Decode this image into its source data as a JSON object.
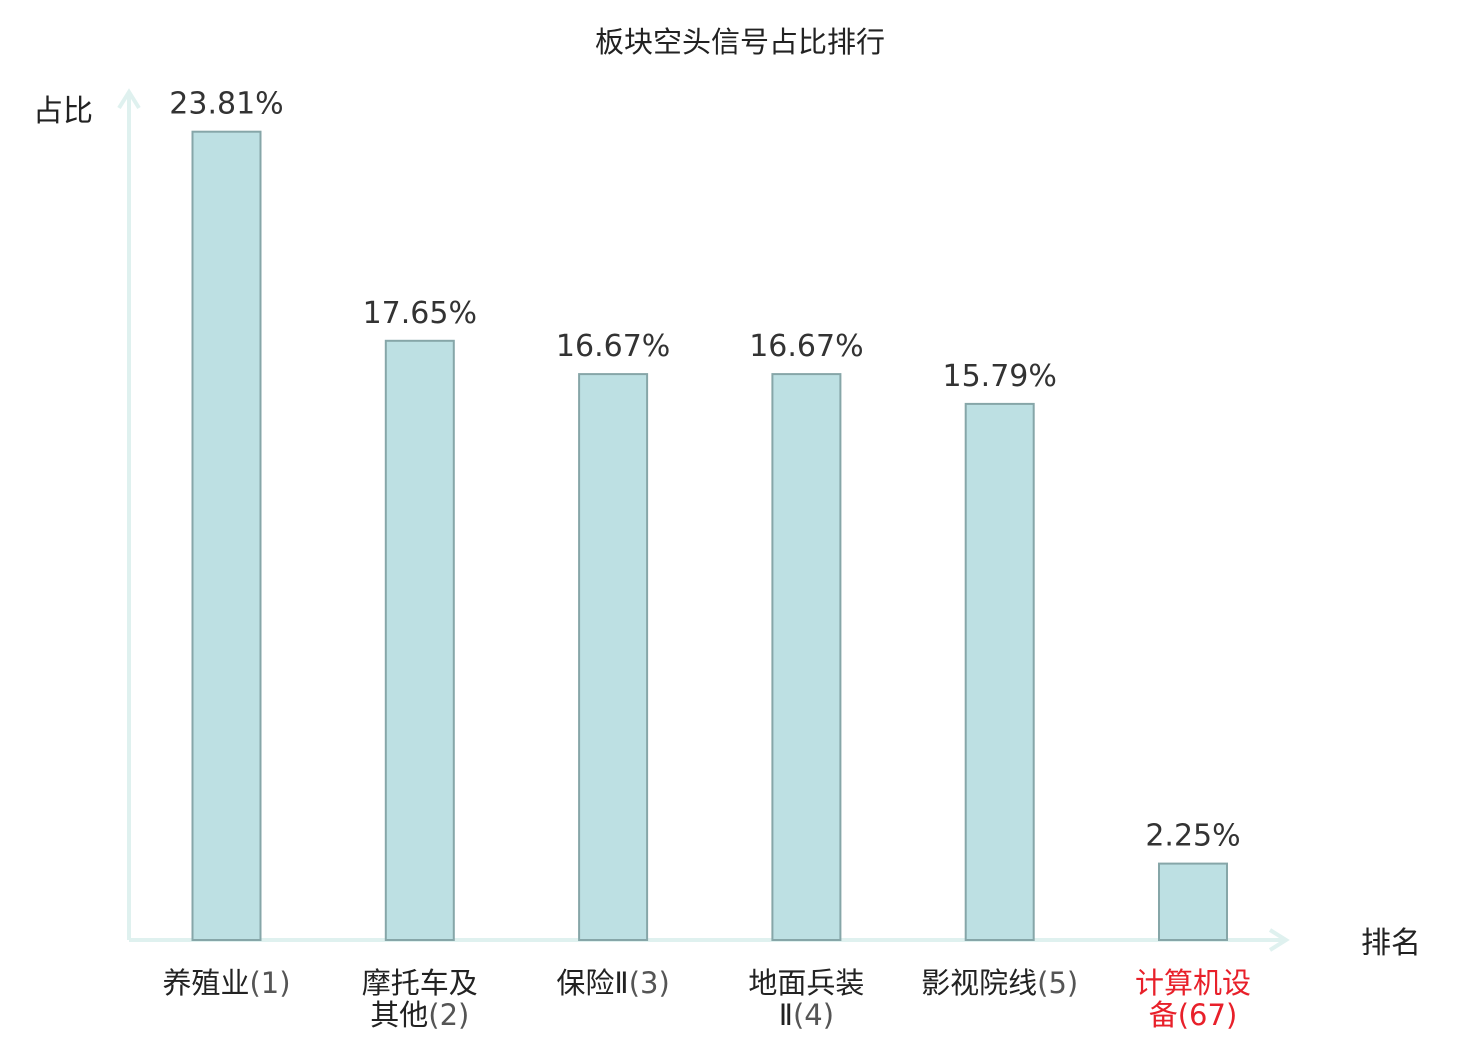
{
  "chart_data": {
    "type": "bar",
    "title": "板块空头信号占比排行",
    "ylabel": "占比",
    "xlabel": "排名",
    "unit": "%",
    "ylim": [
      0,
      25
    ],
    "grid": false,
    "categories": [
      {
        "name_lines": [
          "养殖业"
        ],
        "rank": "(1)",
        "highlight": false
      },
      {
        "name_lines": [
          "摩托车及",
          "其他"
        ],
        "rank": "(2)",
        "highlight": false
      },
      {
        "name_lines": [
          "保险Ⅱ"
        ],
        "rank": "(3)",
        "highlight": false
      },
      {
        "name_lines": [
          "地面兵装",
          "Ⅱ"
        ],
        "rank": "(4)",
        "highlight": false
      },
      {
        "name_lines": [
          "影视院线"
        ],
        "rank": "(5)",
        "highlight": false
      },
      {
        "name_lines": [
          "计算机设",
          "备"
        ],
        "rank": "(67)",
        "highlight": true
      }
    ],
    "values": [
      23.81,
      17.65,
      16.67,
      16.67,
      15.79,
      2.25
    ],
    "value_labels": [
      "23.81%",
      "17.65%",
      "16.67%",
      "16.67%",
      "15.79%",
      "2.25%"
    ]
  },
  "colors": {
    "bar_fill": "#bde0e3",
    "bar_stroke": "#86a6a8",
    "axis": "#dff1ef",
    "text": "#222222",
    "rank_text": "#555555",
    "highlight": "#e8202a"
  }
}
